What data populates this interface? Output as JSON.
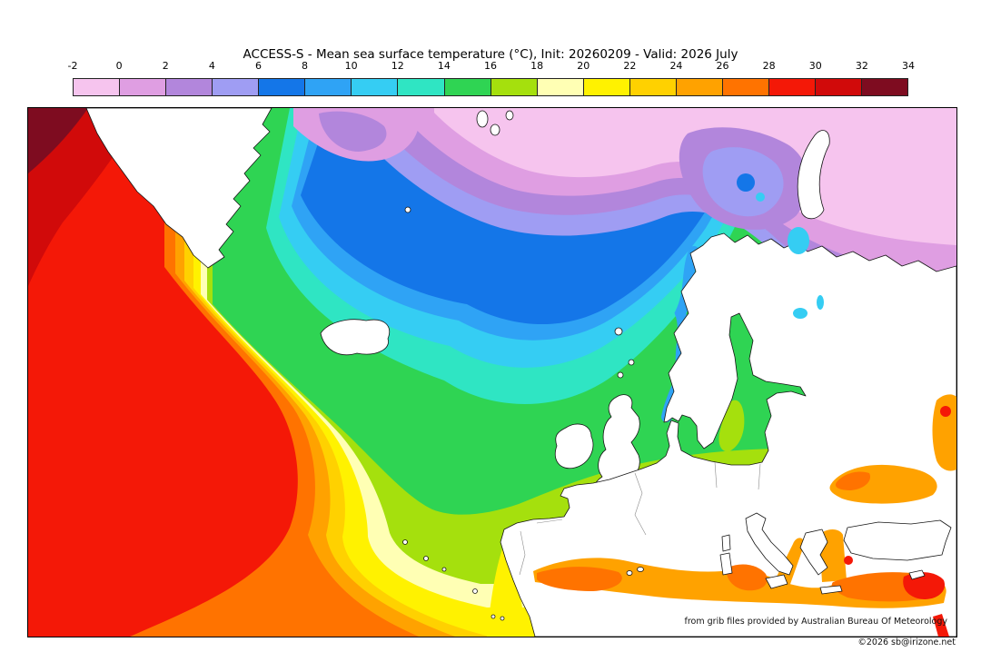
{
  "header": {
    "title": "ACCESS-S - Mean sea surface temperature (°C), Init: 20260209 - Valid: 2026 July"
  },
  "colorbar": {
    "unit": "°C",
    "orientation": "horizontal",
    "tick_labels": [
      "-2",
      "0",
      "2",
      "4",
      "6",
      "8",
      "10",
      "12",
      "14",
      "16",
      "18",
      "20",
      "22",
      "24",
      "26",
      "28",
      "30",
      "32",
      "34"
    ],
    "colors": [
      "#f6c4ee",
      "#df9ee2",
      "#b286dc",
      "#9f9df3",
      "#1476e8",
      "#2fa3f5",
      "#35cdf3",
      "#2fe5c3",
      "#2fd453",
      "#a5e00d",
      "#ffffb4",
      "#fff200",
      "#ffd100",
      "#ffa200",
      "#ff7300",
      "#f41807",
      "#d10a0a",
      "#7e0c20"
    ],
    "border_color": "#222222"
  },
  "map": {
    "credit_line": "from grib files provided by Australian Bureau Of Meteorology",
    "copyright_line": "©2026 sb@irizone.net",
    "land_color": "#ffffff",
    "coast_color": "#151515"
  },
  "chart_data": {
    "type": "heatmap",
    "title": "ACCESS-S - Mean sea surface temperature (°C), Init: 20260209 - Valid: 2026 July",
    "model": "ACCESS-S",
    "init": "20260209",
    "valid": "2026 July",
    "variable": "Mean sea surface temperature",
    "unit": "°C",
    "colorbar_ticks": [
      -2,
      0,
      2,
      4,
      6,
      8,
      10,
      12,
      14,
      16,
      18,
      20,
      22,
      24,
      26,
      28,
      30,
      32,
      34
    ],
    "colorbar_colors": [
      "#f6c4ee",
      "#df9ee2",
      "#b286dc",
      "#9f9df3",
      "#1476e8",
      "#2fa3f5",
      "#35cdf3",
      "#2fe5c3",
      "#2fd453",
      "#a5e00d",
      "#ffffb4",
      "#fff200",
      "#ffd100",
      "#ffa200",
      "#ff7300",
      "#f41807",
      "#d10a0a",
      "#7e0c20"
    ],
    "legend_position": "top"
  }
}
